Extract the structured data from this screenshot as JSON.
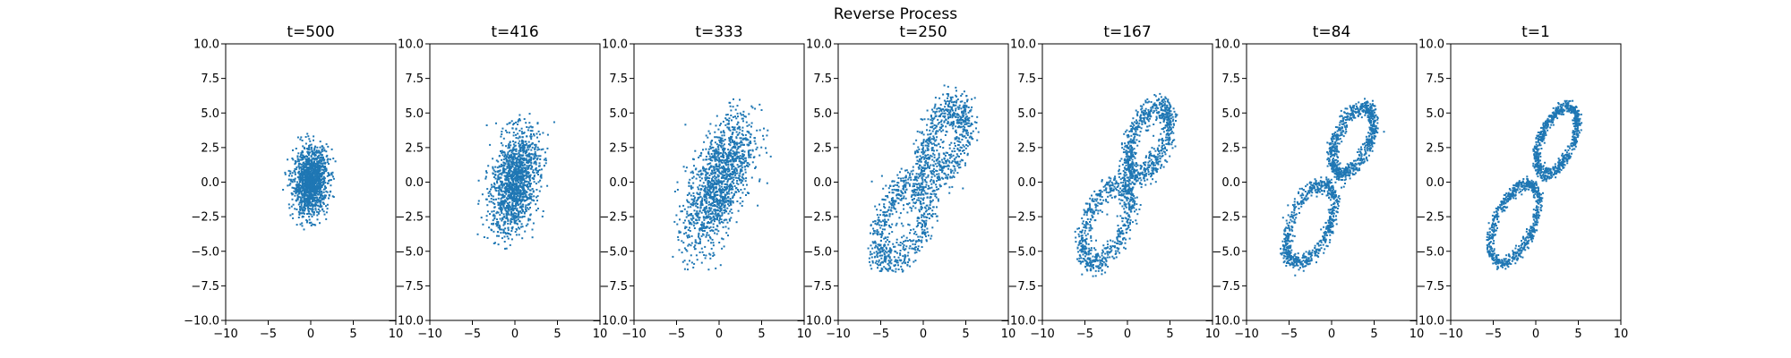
{
  "figure": {
    "suptitle": "Reverse Process"
  },
  "colors": {
    "point": "#1f77b4",
    "axis": "#000000",
    "background": "#ffffff"
  },
  "chart_data": [
    {
      "type": "scatter",
      "title": "t=500",
      "xlim": [
        -10,
        10
      ],
      "ylim": [
        -10,
        10
      ],
      "xticks": [
        -10,
        -5,
        0,
        5,
        10
      ],
      "yticks": [
        -10.0,
        -7.5,
        -5.0,
        -2.5,
        0.0,
        2.5,
        5.0,
        7.5,
        10.0
      ],
      "xtick_labels": [
        "−10",
        "−5",
        "0",
        "5",
        "10"
      ],
      "ytick_labels": [
        "−10.0",
        "−7.5",
        "−5.0",
        "−2.5",
        "0.0",
        "2.5",
        "5.0",
        "7.5",
        "10.0"
      ],
      "grid": false,
      "point_cloud": {
        "shape": "gaussian",
        "center": [
          0,
          0
        ],
        "sd_x": 1.0,
        "sd_y": 1.2,
        "correlation": 0.1,
        "x_range": [
          -3.5,
          3.5
        ],
        "y_range": [
          -3.5,
          3.5
        ]
      }
    },
    {
      "type": "scatter",
      "title": "t=416",
      "xlim": [
        -10,
        10
      ],
      "ylim": [
        -10,
        10
      ],
      "xticks": [
        -10,
        -5,
        0,
        5,
        10
      ],
      "yticks": [
        -10.0,
        -7.5,
        -5.0,
        -2.5,
        0.0,
        2.5,
        5.0,
        7.5,
        10.0
      ],
      "xtick_labels": [
        "−10",
        "−5",
        "0",
        "5",
        "10"
      ],
      "ytick_labels": [
        "−10.0",
        "−7.5",
        "−5.0",
        "−2.5",
        "0.0",
        "2.5",
        "5.0",
        "7.5",
        "10.0"
      ],
      "grid": false,
      "point_cloud": {
        "shape": "gaussian",
        "center": [
          0,
          0
        ],
        "sd_x": 1.4,
        "sd_y": 1.9,
        "correlation": 0.35,
        "x_range": [
          -5,
          5
        ],
        "y_range": [
          -5,
          5
        ]
      }
    },
    {
      "type": "scatter",
      "title": "t=333",
      "xlim": [
        -10,
        10
      ],
      "ylim": [
        -10,
        10
      ],
      "xticks": [
        -10,
        -5,
        0,
        5,
        10
      ],
      "yticks": [
        -10.0,
        -7.5,
        -5.0,
        -2.5,
        0.0,
        2.5,
        5.0,
        7.5,
        10.0
      ],
      "xtick_labels": [
        "−10",
        "−5",
        "0",
        "5",
        "10"
      ],
      "ytick_labels": [
        "−10.0",
        "−7.5",
        "−5.0",
        "−2.5",
        "0.0",
        "2.5",
        "5.0",
        "7.5",
        "10.0"
      ],
      "grid": false,
      "point_cloud": {
        "shape": "gaussian",
        "center": [
          0,
          0
        ],
        "sd_x": 2.0,
        "sd_y": 2.5,
        "correlation": 0.6,
        "x_range": [
          -5.5,
          6.5
        ],
        "y_range": [
          -6.5,
          6
        ]
      }
    },
    {
      "type": "scatter",
      "title": "t=250",
      "xlim": [
        -10,
        10
      ],
      "ylim": [
        -10,
        10
      ],
      "xticks": [
        -10,
        -5,
        0,
        5,
        10
      ],
      "yticks": [
        -10.0,
        -7.5,
        -5.0,
        -2.5,
        0.0,
        2.5,
        5.0,
        7.5,
        10.0
      ],
      "xtick_labels": [
        "−10",
        "−5",
        "0",
        "5",
        "10"
      ],
      "ytick_labels": [
        "−10.0",
        "−7.5",
        "−5.0",
        "−2.5",
        "0.0",
        "2.5",
        "5.0",
        "7.5",
        "10.0"
      ],
      "grid": false,
      "point_cloud": {
        "shape": "double-loop",
        "loop_centers": [
          [
            2.5,
            3.0
          ],
          [
            -2.5,
            -3.0
          ]
        ],
        "loop_radii": [
          2.2,
          2.6
        ],
        "spread": 0.7,
        "x_range": [
          -6.5,
          7
        ],
        "y_range": [
          -6.5,
          7
        ]
      }
    },
    {
      "type": "scatter",
      "title": "t=167",
      "xlim": [
        -10,
        10
      ],
      "ylim": [
        -10,
        10
      ],
      "xticks": [
        -10,
        -5,
        0,
        5,
        10
      ],
      "yticks": [
        -10.0,
        -7.5,
        -5.0,
        -2.5,
        0.0,
        2.5,
        5.0,
        7.5,
        10.0
      ],
      "xtick_labels": [
        "−10",
        "−5",
        "0",
        "5",
        "10"
      ],
      "ytick_labels": [
        "−10.0",
        "−7.5",
        "−5.0",
        "−2.5",
        "0.0",
        "2.5",
        "5.0",
        "7.5",
        "10.0"
      ],
      "grid": false,
      "point_cloud": {
        "shape": "double-loop",
        "loop_centers": [
          [
            2.5,
            3.0
          ],
          [
            -2.5,
            -3.0
          ]
        ],
        "loop_radii": [
          2.2,
          2.6
        ],
        "spread": 0.45,
        "x_range": [
          -7.5,
          7.5
        ],
        "y_range": [
          -7,
          7
        ]
      }
    },
    {
      "type": "scatter",
      "title": "t=84",
      "xlim": [
        -10,
        10
      ],
      "ylim": [
        -10,
        10
      ],
      "xticks": [
        -10,
        -5,
        0,
        5,
        10
      ],
      "yticks": [
        -10.0,
        -7.5,
        -5.0,
        -2.5,
        0.0,
        2.5,
        5.0,
        7.5,
        10.0
      ],
      "xtick_labels": [
        "−10",
        "−5",
        "0",
        "5",
        "10"
      ],
      "ytick_labels": [
        "−10.0",
        "−7.5",
        "−5.0",
        "−2.5",
        "0.0",
        "2.5",
        "5.0",
        "7.5",
        "10.0"
      ],
      "grid": false,
      "point_cloud": {
        "shape": "double-loop",
        "loop_centers": [
          [
            2.5,
            3.0
          ],
          [
            -2.5,
            -3.0
          ]
        ],
        "loop_radii": [
          2.2,
          2.6
        ],
        "spread": 0.3,
        "x_range": [
          -7.5,
          7.5
        ],
        "y_range": [
          -7,
          7
        ]
      }
    },
    {
      "type": "scatter",
      "title": "t=1",
      "xlim": [
        -10,
        10
      ],
      "ylim": [
        -10,
        10
      ],
      "xticks": [
        -10,
        -5,
        0,
        5,
        10
      ],
      "yticks": [
        -10.0,
        -7.5,
        -5.0,
        -2.5,
        0.0,
        2.5,
        5.0,
        7.5,
        10.0
      ],
      "xtick_labels": [
        "−10",
        "−5",
        "0",
        "5",
        "10"
      ],
      "ytick_labels": [
        "−10.0",
        "−7.5",
        "−5.0",
        "−2.5",
        "0.0",
        "2.5",
        "5.0",
        "7.5",
        "10.0"
      ],
      "grid": false,
      "point_cloud": {
        "shape": "double-loop",
        "loop_centers": [
          [
            2.5,
            3.0
          ],
          [
            -2.5,
            -3.0
          ]
        ],
        "loop_radii": [
          2.2,
          2.6
        ],
        "spread": 0.22,
        "x_range": [
          -7.5,
          7.5
        ],
        "y_range": [
          -7,
          7
        ]
      }
    }
  ]
}
